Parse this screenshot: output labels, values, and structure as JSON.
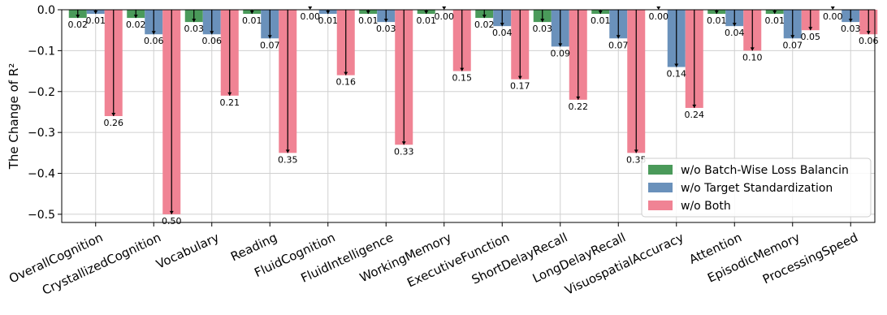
{
  "chart_data": {
    "type": "bar",
    "ylabel": "The Change of R²",
    "ylim": [
      -0.52,
      0.0
    ],
    "yticks": [
      0.0,
      -0.1,
      -0.2,
      -0.3,
      -0.4,
      -0.5
    ],
    "ytick_labels": [
      "0.0",
      "−0.1",
      "−0.2",
      "−0.3",
      "−0.4",
      "−0.5"
    ],
    "grid": true,
    "legend_position": "bottom-right",
    "categories": [
      "OverallCognition",
      "CrystallizedCognition",
      "Vocabulary",
      "Reading",
      "FluidCognition",
      "FluidIntelligence",
      "WorkingMemory",
      "ExecutiveFunction",
      "ShortDelayRecall",
      "LongDelayRecall",
      "VisuospatialAccuracy",
      "Attention",
      "EpisodicMemory",
      "ProcessingSpeed"
    ],
    "series": [
      {
        "name": "w/o Batch-Wise Loss Balancin",
        "color": "#4a9a5a",
        "values": [
          -0.02,
          -0.02,
          -0.03,
          -0.01,
          -0.0,
          -0.01,
          -0.01,
          -0.02,
          -0.03,
          -0.01,
          -0.0,
          -0.01,
          -0.01,
          -0.0
        ],
        "labels": [
          "0.02",
          "0.02",
          "0.03",
          "0.01",
          "0.00",
          "0.01",
          "0.01",
          "0.02",
          "0.03",
          "0.01",
          "0.00",
          "0.01",
          "0.01",
          "0.00"
        ]
      },
      {
        "name": "w/o Target Standardization",
        "color": "#6a91bb",
        "values": [
          -0.01,
          -0.06,
          -0.06,
          -0.07,
          -0.01,
          -0.03,
          -0.0,
          -0.04,
          -0.09,
          -0.07,
          -0.14,
          -0.04,
          -0.07,
          -0.03
        ],
        "labels": [
          "0.01",
          "0.06",
          "0.06",
          "0.07",
          "0.01",
          "0.03",
          "0.00",
          "0.04",
          "0.09",
          "0.07",
          "0.14",
          "0.04",
          "0.07",
          "0.03"
        ]
      },
      {
        "name": "w/o Both",
        "color": "#f08394",
        "values": [
          -0.26,
          -0.5,
          -0.21,
          -0.35,
          -0.16,
          -0.33,
          -0.15,
          -0.17,
          -0.22,
          -0.35,
          -0.24,
          -0.1,
          -0.05,
          -0.06
        ],
        "labels": [
          "0.26",
          "0.50",
          "0.21",
          "0.35",
          "0.16",
          "0.33",
          "0.15",
          "0.17",
          "0.22",
          "0.35",
          "0.24",
          "0.10",
          "0.05",
          "0.06"
        ]
      }
    ]
  }
}
